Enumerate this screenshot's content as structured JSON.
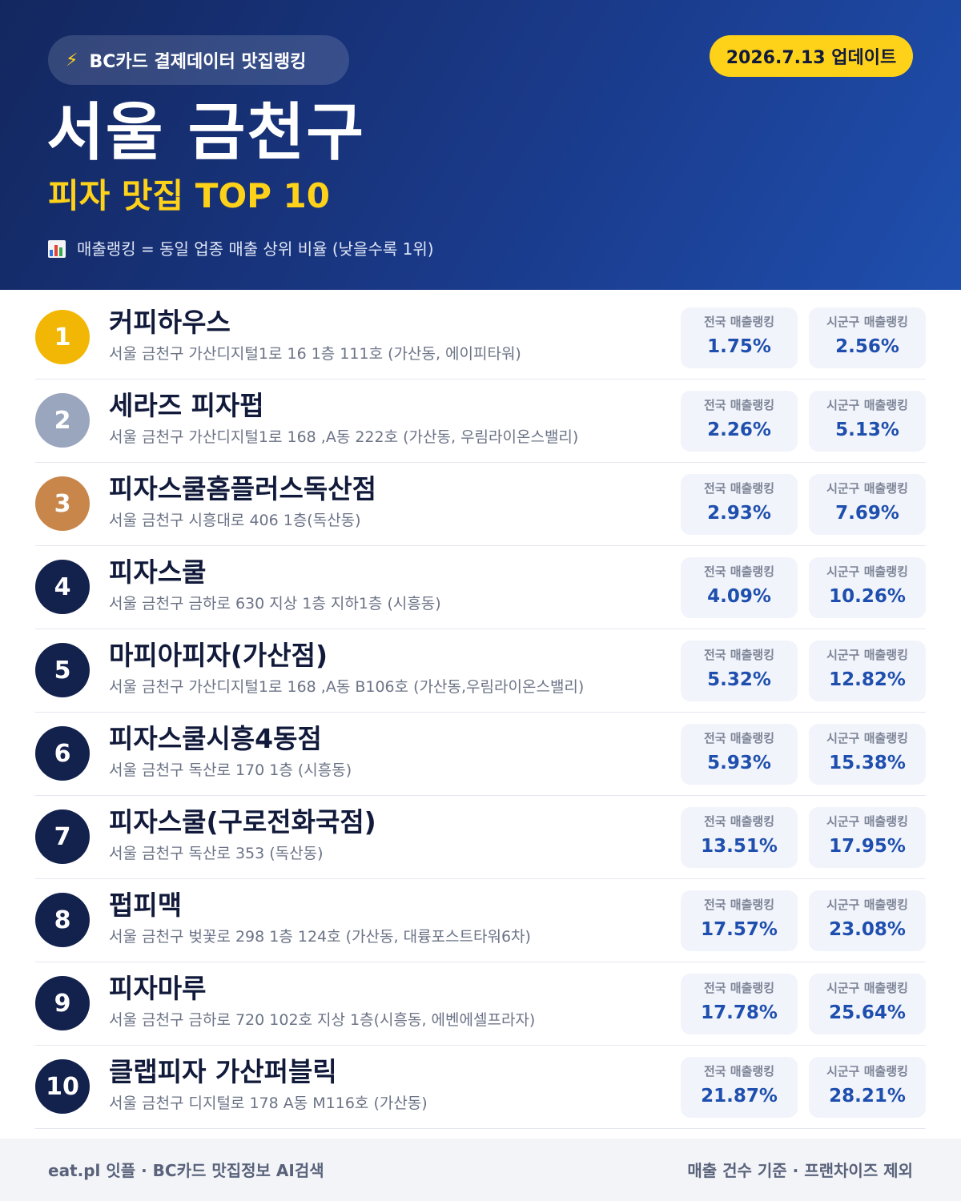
{
  "header": {
    "brand_pill": "BC카드 결제데이터 맛집랭킹",
    "update_label": "2026.7.13 업데이트",
    "title": "서울 금천구",
    "subtitle": "피자 맛집 TOP 10",
    "note": "매출랭킹 = 동일 업종 매출 상위 비율 (낮을수록 1위)"
  },
  "labels": {
    "national": "전국 매출랭킹",
    "local": "시군구 매출랭킹"
  },
  "colors": {
    "gold": "#f2b705",
    "silver": "#9aa6bd",
    "bronze": "#c8864a",
    "navy": "#13214d",
    "accent_yellow": "#ffd21a",
    "value_blue": "#1f4fae"
  },
  "items": [
    {
      "rank": "1",
      "name": "커피하우스",
      "address": "서울 금천구 가산디지털1로 16 1층 111호 (가산동, 에이피타워)",
      "national": "1.75%",
      "local": "2.56%"
    },
    {
      "rank": "2",
      "name": "세라즈 피자펍",
      "address": "서울 금천구 가산디지털1로 168 ,A동 222호 (가산동, 우림라이온스밸리)",
      "national": "2.26%",
      "local": "5.13%"
    },
    {
      "rank": "3",
      "name": "피자스쿨홈플러스독산점",
      "address": "서울 금천구 시흥대로 406 1층(독산동)",
      "national": "2.93%",
      "local": "7.69%"
    },
    {
      "rank": "4",
      "name": "피자스쿨",
      "address": "서울 금천구 금하로 630 지상 1층 지하1층 (시흥동)",
      "national": "4.09%",
      "local": "10.26%"
    },
    {
      "rank": "5",
      "name": "마피아피자(가산점)",
      "address": "서울 금천구 가산디지털1로 168 ,A동 B106호 (가산동,우림라이온스밸리)",
      "national": "5.32%",
      "local": "12.82%"
    },
    {
      "rank": "6",
      "name": "피자스쿨시흥4동점",
      "address": "서울 금천구 독산로 170 1층 (시흥동)",
      "national": "5.93%",
      "local": "15.38%"
    },
    {
      "rank": "7",
      "name": "피자스쿨(구로전화국점)",
      "address": "서울 금천구 독산로 353 (독산동)",
      "national": "13.51%",
      "local": "17.95%"
    },
    {
      "rank": "8",
      "name": "펍피맥",
      "address": "서울 금천구 벚꽃로 298 1층 124호 (가산동, 대륭포스트타워6차)",
      "national": "17.57%",
      "local": "23.08%"
    },
    {
      "rank": "9",
      "name": "피자마루",
      "address": "서울 금천구 금하로 720 102호 지상 1층(시흥동, 에벤에셀프라자)",
      "national": "17.78%",
      "local": "25.64%"
    },
    {
      "rank": "10",
      "name": "클랩피자 가산퍼블릭",
      "address": "서울 금천구 디지털로 178 A동 M116호 (가산동)",
      "national": "21.87%",
      "local": "28.21%"
    }
  ],
  "footer": {
    "left": "eat.pl 잇플 · BC카드 맛집정보 AI검색",
    "right": "매출 건수 기준 · 프랜차이즈 제외"
  }
}
